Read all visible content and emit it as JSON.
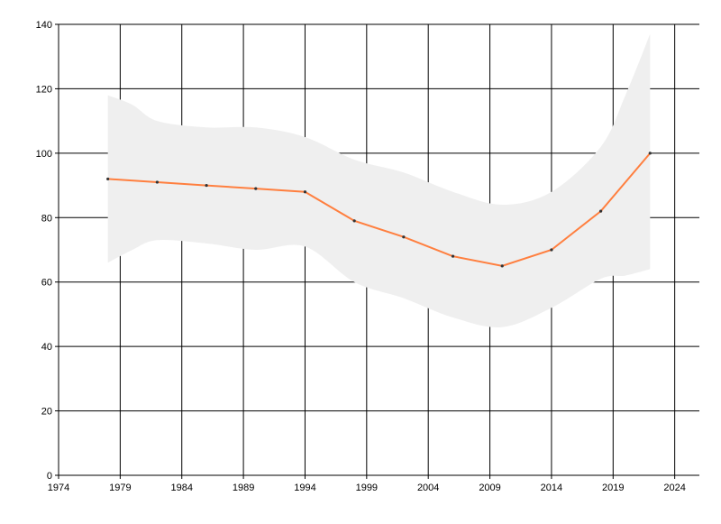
{
  "chart_data": {
    "type": "line",
    "title": "",
    "xlabel": "",
    "ylabel": "",
    "xlim": [
      1974,
      2026
    ],
    "ylim": [
      0,
      140
    ],
    "x_ticks": [
      1974,
      1979,
      1984,
      1989,
      1994,
      1999,
      2004,
      2009,
      2014,
      2019,
      2024
    ],
    "x_tick_labels": [
      "1974",
      "1979",
      "1984",
      "1989",
      "1994",
      "1999",
      "2004",
      "2009",
      "2014",
      "2019",
      "2024"
    ],
    "y_ticks": [
      0,
      20,
      40,
      60,
      80,
      100,
      120,
      140
    ],
    "y_tick_labels": [
      "0",
      "20",
      "40",
      "60",
      "80",
      "100",
      "120",
      "140"
    ],
    "grid": true,
    "legend": "none",
    "series": [
      {
        "x": [
          1978,
          1982,
          1986,
          1990,
          1994,
          1998,
          2002,
          2006,
          2010,
          2014,
          2018,
          2022
        ],
        "values": [
          92,
          91,
          90,
          89,
          88,
          79,
          74,
          68,
          65,
          70,
          82,
          100
        ],
        "color": "#ff7f3f"
      }
    ],
    "band": {
      "x": [
        1978,
        1980,
        1982,
        1986,
        1990,
        1994,
        1998,
        2002,
        2006,
        2010,
        2014,
        2018,
        2020,
        2022
      ],
      "upper": [
        118,
        115,
        110,
        108,
        108,
        105,
        98,
        94,
        88,
        84,
        88,
        102,
        118,
        137
      ],
      "lower": [
        66,
        70,
        73,
        72,
        70,
        71,
        60,
        55,
        49,
        46,
        52,
        61,
        62,
        64
      ],
      "color": "#efefef"
    }
  }
}
